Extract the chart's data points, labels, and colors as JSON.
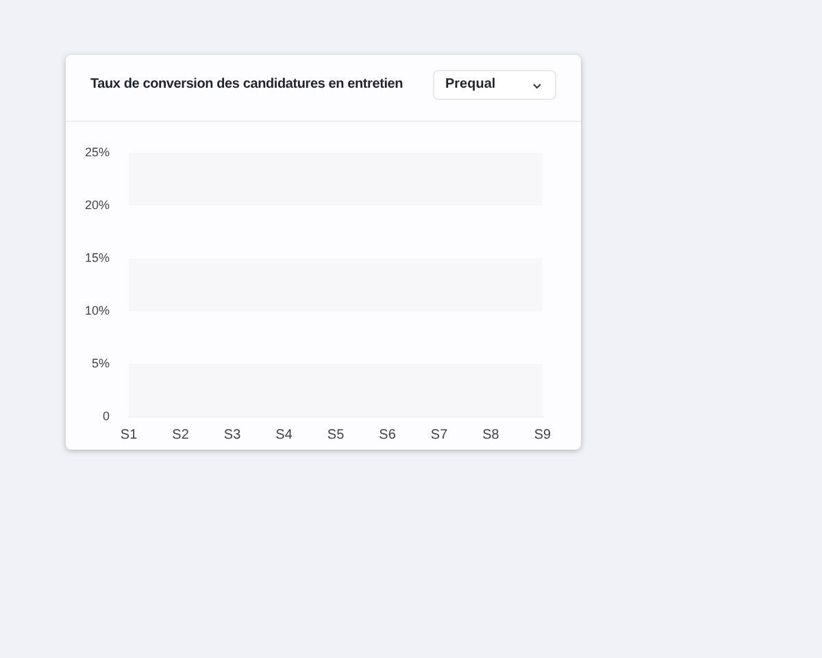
{
  "chart_data": {
    "type": "line",
    "title": "Taux de conversion des candidatures en entretien",
    "categories": [
      "S1",
      "S2",
      "S3",
      "S4",
      "S5",
      "S6",
      "S7",
      "S8",
      "S9"
    ],
    "values": [
      null,
      null,
      null,
      null,
      null,
      null,
      null,
      null,
      null
    ],
    "ylim": [
      0,
      25
    ],
    "yticks": [
      0,
      {
        "value": 5,
        "label": "5%"
      },
      {
        "value": 10,
        "label": "10%"
      },
      {
        "value": 15,
        "label": "15%"
      },
      {
        "value": 20,
        "label": "20%"
      },
      {
        "value": 25,
        "label": "25%"
      }
    ],
    "bands": [
      {
        "axis": "y",
        "from": 0,
        "to": 5,
        "color": "#f7f6f8"
      },
      {
        "axis": "y",
        "from": 10,
        "to": 15,
        "color": "#f7f6f8"
      },
      {
        "axis": "y",
        "from": 20,
        "to": 25,
        "color": "#f7f6f8"
      }
    ],
    "annotations": [
      "Prequal"
    ],
    "grid": false,
    "legend": false
  }
}
